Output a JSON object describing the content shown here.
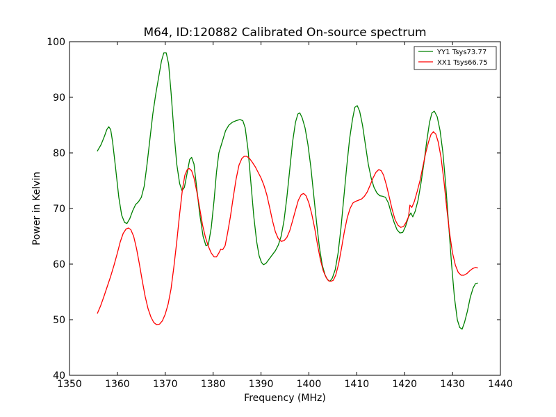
{
  "chart_data": {
    "type": "line",
    "title": "M64, ID:120882 Calibrated On-source spectrum",
    "xlabel": "Frequency (MHz)",
    "ylabel": "Power in Kelvin",
    "xlim": [
      1350,
      1440
    ],
    "ylim": [
      40,
      100
    ],
    "xticks": [
      1350,
      1360,
      1370,
      1380,
      1390,
      1400,
      1410,
      1420,
      1430,
      1440
    ],
    "yticks": [
      40,
      50,
      60,
      70,
      80,
      90,
      100
    ],
    "grid": false,
    "legend_position": "top-right",
    "series": [
      {
        "name": "YY1 Tsys73.77",
        "color": "#008000",
        "points": [
          [
            1355.8,
            80.3
          ],
          [
            1356.6,
            81.5
          ],
          [
            1357.3,
            83.0
          ],
          [
            1357.8,
            84.2
          ],
          [
            1358.2,
            84.7
          ],
          [
            1358.6,
            84.2
          ],
          [
            1359.0,
            82.0
          ],
          [
            1359.6,
            77.5
          ],
          [
            1360.3,
            72.0
          ],
          [
            1360.9,
            68.8
          ],
          [
            1361.5,
            67.5
          ],
          [
            1362.0,
            67.3
          ],
          [
            1362.6,
            68.2
          ],
          [
            1363.2,
            69.6
          ],
          [
            1363.8,
            70.7
          ],
          [
            1364.4,
            71.2
          ],
          [
            1365.0,
            72.0
          ],
          [
            1365.6,
            74.0
          ],
          [
            1366.2,
            78.0
          ],
          [
            1366.8,
            82.5
          ],
          [
            1367.4,
            87.0
          ],
          [
            1368.0,
            90.5
          ],
          [
            1368.6,
            93.5
          ],
          [
            1369.2,
            96.5
          ],
          [
            1369.7,
            98.0
          ],
          [
            1370.2,
            98.0
          ],
          [
            1370.7,
            96.0
          ],
          [
            1371.2,
            91.0
          ],
          [
            1371.8,
            84.0
          ],
          [
            1372.4,
            78.0
          ],
          [
            1373.0,
            74.5
          ],
          [
            1373.5,
            73.2
          ],
          [
            1374.0,
            73.8
          ],
          [
            1374.6,
            76.5
          ],
          [
            1375.1,
            78.8
          ],
          [
            1375.5,
            79.2
          ],
          [
            1376.0,
            78.0
          ],
          [
            1376.6,
            73.5
          ],
          [
            1377.2,
            69.0
          ],
          [
            1377.9,
            65.0
          ],
          [
            1378.5,
            63.3
          ],
          [
            1379.0,
            63.5
          ],
          [
            1379.6,
            66.5
          ],
          [
            1380.2,
            71.5
          ],
          [
            1380.7,
            76.5
          ],
          [
            1381.2,
            80.0
          ],
          [
            1381.9,
            82.0
          ],
          [
            1382.6,
            84.0
          ],
          [
            1383.3,
            85.0
          ],
          [
            1384.0,
            85.5
          ],
          [
            1384.8,
            85.8
          ],
          [
            1385.6,
            86.0
          ],
          [
            1386.2,
            85.8
          ],
          [
            1386.7,
            84.5
          ],
          [
            1387.3,
            80.5
          ],
          [
            1387.9,
            74.5
          ],
          [
            1388.5,
            68.5
          ],
          [
            1389.1,
            64.0
          ],
          [
            1389.6,
            61.5
          ],
          [
            1390.1,
            60.3
          ],
          [
            1390.5,
            59.9
          ],
          [
            1391.0,
            60.1
          ],
          [
            1391.6,
            60.8
          ],
          [
            1392.3,
            61.6
          ],
          [
            1393.0,
            62.4
          ],
          [
            1393.6,
            63.4
          ],
          [
            1394.2,
            65.0
          ],
          [
            1394.8,
            67.8
          ],
          [
            1395.4,
            72.0
          ],
          [
            1396.0,
            77.0
          ],
          [
            1396.6,
            82.0
          ],
          [
            1397.2,
            85.5
          ],
          [
            1397.7,
            87.0
          ],
          [
            1398.1,
            87.2
          ],
          [
            1398.6,
            86.3
          ],
          [
            1399.2,
            84.5
          ],
          [
            1399.8,
            81.5
          ],
          [
            1400.4,
            77.5
          ],
          [
            1401.0,
            72.5
          ],
          [
            1401.6,
            67.5
          ],
          [
            1402.2,
            63.0
          ],
          [
            1402.8,
            59.8
          ],
          [
            1403.4,
            58.0
          ],
          [
            1403.9,
            57.2
          ],
          [
            1404.4,
            56.9
          ],
          [
            1404.9,
            57.5
          ],
          [
            1405.5,
            59.0
          ],
          [
            1406.1,
            62.0
          ],
          [
            1406.7,
            66.5
          ],
          [
            1407.3,
            72.0
          ],
          [
            1407.9,
            77.5
          ],
          [
            1408.5,
            82.5
          ],
          [
            1409.1,
            86.0
          ],
          [
            1409.6,
            88.2
          ],
          [
            1410.1,
            88.5
          ],
          [
            1410.6,
            87.5
          ],
          [
            1411.2,
            85.0
          ],
          [
            1411.8,
            81.5
          ],
          [
            1412.4,
            78.0
          ],
          [
            1413.0,
            75.5
          ],
          [
            1413.6,
            73.8
          ],
          [
            1414.2,
            72.8
          ],
          [
            1414.8,
            72.3
          ],
          [
            1415.4,
            72.2
          ],
          [
            1416.0,
            72.0
          ],
          [
            1416.6,
            71.0
          ],
          [
            1417.2,
            69.2
          ],
          [
            1417.8,
            67.5
          ],
          [
            1418.4,
            66.2
          ],
          [
            1419.0,
            65.6
          ],
          [
            1419.6,
            65.7
          ],
          [
            1420.2,
            66.8
          ],
          [
            1420.8,
            68.5
          ],
          [
            1421.3,
            69.2
          ],
          [
            1421.7,
            68.5
          ],
          [
            1422.2,
            69.5
          ],
          [
            1422.8,
            71.5
          ],
          [
            1423.4,
            74.5
          ],
          [
            1424.0,
            78.0
          ],
          [
            1424.6,
            82.0
          ],
          [
            1425.2,
            85.5
          ],
          [
            1425.7,
            87.2
          ],
          [
            1426.2,
            87.5
          ],
          [
            1426.8,
            86.5
          ],
          [
            1427.4,
            84.0
          ],
          [
            1428.0,
            80.0
          ],
          [
            1428.6,
            74.0
          ],
          [
            1429.2,
            67.0
          ],
          [
            1429.8,
            60.0
          ],
          [
            1430.4,
            54.0
          ],
          [
            1431.0,
            50.0
          ],
          [
            1431.5,
            48.6
          ],
          [
            1432.0,
            48.3
          ],
          [
            1432.5,
            49.5
          ],
          [
            1433.1,
            51.5
          ],
          [
            1433.7,
            54.0
          ],
          [
            1434.3,
            55.7
          ],
          [
            1434.8,
            56.5
          ],
          [
            1435.3,
            56.6
          ]
        ]
      },
      {
        "name": "XX1 Tsys66.75",
        "color": "#ff0000",
        "points": [
          [
            1355.8,
            51.1
          ],
          [
            1356.5,
            52.5
          ],
          [
            1357.2,
            54.2
          ],
          [
            1357.9,
            56.0
          ],
          [
            1358.6,
            57.8
          ],
          [
            1359.3,
            59.8
          ],
          [
            1360.0,
            62.0
          ],
          [
            1360.6,
            64.0
          ],
          [
            1361.2,
            65.5
          ],
          [
            1361.8,
            66.3
          ],
          [
            1362.3,
            66.5
          ],
          [
            1362.8,
            66.2
          ],
          [
            1363.4,
            65.0
          ],
          [
            1364.0,
            62.8
          ],
          [
            1364.6,
            60.0
          ],
          [
            1365.2,
            57.0
          ],
          [
            1365.8,
            54.2
          ],
          [
            1366.4,
            52.0
          ],
          [
            1367.0,
            50.5
          ],
          [
            1367.6,
            49.5
          ],
          [
            1368.2,
            49.1
          ],
          [
            1368.8,
            49.2
          ],
          [
            1369.4,
            49.8
          ],
          [
            1370.0,
            51.0
          ],
          [
            1370.6,
            52.8
          ],
          [
            1371.2,
            55.5
          ],
          [
            1371.8,
            59.5
          ],
          [
            1372.4,
            64.0
          ],
          [
            1373.0,
            69.0
          ],
          [
            1373.6,
            73.5
          ],
          [
            1374.1,
            76.0
          ],
          [
            1374.6,
            77.0
          ],
          [
            1375.0,
            77.2
          ],
          [
            1375.5,
            76.8
          ],
          [
            1376.0,
            75.5
          ],
          [
            1376.6,
            73.0
          ],
          [
            1377.2,
            70.0
          ],
          [
            1377.8,
            67.0
          ],
          [
            1378.4,
            64.8
          ],
          [
            1379.0,
            63.2
          ],
          [
            1379.6,
            62.0
          ],
          [
            1380.2,
            61.3
          ],
          [
            1380.7,
            61.3
          ],
          [
            1381.2,
            62.0
          ],
          [
            1381.6,
            62.7
          ],
          [
            1382.0,
            62.6
          ],
          [
            1382.5,
            63.3
          ],
          [
            1383.0,
            65.5
          ],
          [
            1383.6,
            68.5
          ],
          [
            1384.2,
            72.0
          ],
          [
            1384.8,
            75.3
          ],
          [
            1385.4,
            77.8
          ],
          [
            1386.0,
            79.0
          ],
          [
            1386.5,
            79.4
          ],
          [
            1387.0,
            79.4
          ],
          [
            1387.6,
            79.0
          ],
          [
            1388.2,
            78.3
          ],
          [
            1388.8,
            77.5
          ],
          [
            1389.4,
            76.5
          ],
          [
            1390.0,
            75.5
          ],
          [
            1390.6,
            74.2
          ],
          [
            1391.2,
            72.5
          ],
          [
            1391.8,
            70.2
          ],
          [
            1392.4,
            67.8
          ],
          [
            1393.0,
            65.8
          ],
          [
            1393.6,
            64.6
          ],
          [
            1394.2,
            64.1
          ],
          [
            1394.8,
            64.2
          ],
          [
            1395.4,
            64.8
          ],
          [
            1396.0,
            66.0
          ],
          [
            1396.6,
            67.8
          ],
          [
            1397.2,
            69.7
          ],
          [
            1397.8,
            71.5
          ],
          [
            1398.4,
            72.5
          ],
          [
            1398.9,
            72.7
          ],
          [
            1399.4,
            72.3
          ],
          [
            1400.0,
            71.0
          ],
          [
            1400.6,
            69.0
          ],
          [
            1401.2,
            66.5
          ],
          [
            1401.8,
            63.5
          ],
          [
            1402.4,
            60.8
          ],
          [
            1403.0,
            58.8
          ],
          [
            1403.6,
            57.6
          ],
          [
            1404.1,
            57.0
          ],
          [
            1404.6,
            56.9
          ],
          [
            1405.1,
            57.1
          ],
          [
            1405.6,
            58.0
          ],
          [
            1406.2,
            60.0
          ],
          [
            1406.8,
            62.8
          ],
          [
            1407.4,
            65.8
          ],
          [
            1408.0,
            68.3
          ],
          [
            1408.6,
            70.0
          ],
          [
            1409.2,
            71.0
          ],
          [
            1409.8,
            71.3
          ],
          [
            1410.4,
            71.5
          ],
          [
            1411.0,
            71.7
          ],
          [
            1411.6,
            72.2
          ],
          [
            1412.2,
            73.0
          ],
          [
            1412.8,
            74.2
          ],
          [
            1413.4,
            75.5
          ],
          [
            1414.0,
            76.5
          ],
          [
            1414.6,
            77.0
          ],
          [
            1415.1,
            76.8
          ],
          [
            1415.6,
            76.0
          ],
          [
            1416.2,
            74.2
          ],
          [
            1416.8,
            72.0
          ],
          [
            1417.4,
            69.8
          ],
          [
            1418.0,
            68.0
          ],
          [
            1418.6,
            67.0
          ],
          [
            1419.2,
            66.6
          ],
          [
            1419.8,
            66.8
          ],
          [
            1420.3,
            67.5
          ],
          [
            1420.8,
            68.5
          ],
          [
            1421.1,
            70.6
          ],
          [
            1421.5,
            70.2
          ],
          [
            1422.0,
            71.2
          ],
          [
            1422.6,
            73.0
          ],
          [
            1423.2,
            75.0
          ],
          [
            1423.8,
            77.5
          ],
          [
            1424.4,
            80.0
          ],
          [
            1425.0,
            82.0
          ],
          [
            1425.5,
            83.3
          ],
          [
            1426.0,
            83.8
          ],
          [
            1426.5,
            83.4
          ],
          [
            1427.0,
            82.0
          ],
          [
            1427.6,
            79.2
          ],
          [
            1428.2,
            75.0
          ],
          [
            1428.8,
            70.0
          ],
          [
            1429.4,
            65.5
          ],
          [
            1430.0,
            62.0
          ],
          [
            1430.6,
            59.8
          ],
          [
            1431.2,
            58.5
          ],
          [
            1431.8,
            58.0
          ],
          [
            1432.4,
            58.0
          ],
          [
            1433.0,
            58.3
          ],
          [
            1433.6,
            58.8
          ],
          [
            1434.2,
            59.2
          ],
          [
            1434.8,
            59.4
          ],
          [
            1435.3,
            59.3
          ]
        ]
      }
    ]
  }
}
